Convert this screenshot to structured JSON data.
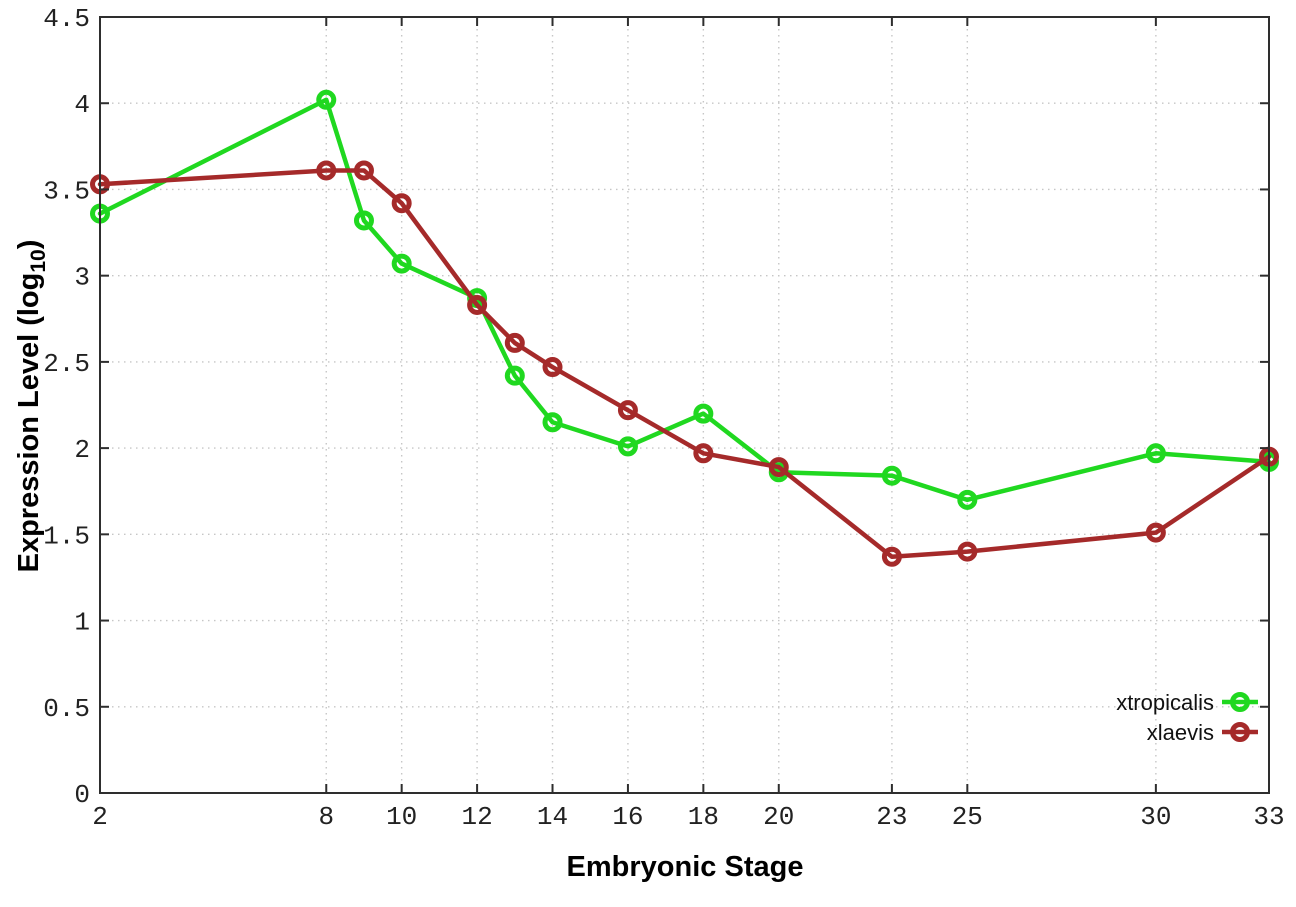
{
  "page": {
    "background": "#ffffff",
    "border_color": "#2e2e2e",
    "grid_color": "#c6c6c6",
    "tick_label_color": "#222222"
  },
  "chart_data": {
    "type": "line",
    "title": "",
    "xlabel": "Embryonic Stage",
    "ylabel": "Expression Level (log10)",
    "ylabel_parts": {
      "main": "Expression Level (log",
      "sub": "10",
      "end": ")"
    },
    "x": [
      2,
      8,
      9,
      10,
      12,
      13,
      14,
      16,
      18,
      20,
      23,
      25,
      30,
      33
    ],
    "xlim": [
      2,
      33
    ],
    "ylim": [
      0,
      4.5
    ],
    "xticks": [
      2,
      8,
      10,
      12,
      14,
      16,
      18,
      20,
      23,
      25,
      30,
      33
    ],
    "xtick_labels": [
      "2",
      "8",
      "10",
      "12",
      "14",
      "16",
      "18",
      "20",
      "23",
      "25",
      "30",
      "33"
    ],
    "yticks": [
      0,
      0.5,
      1,
      1.5,
      2,
      2.5,
      3,
      3.5,
      4,
      4.5
    ],
    "ytick_labels": [
      "0",
      "0.5",
      "1",
      "1.5",
      "2",
      "2.5",
      "3",
      "3.5",
      "4",
      "4.5"
    ],
    "grid": true,
    "legend_position": "bottom-right",
    "series": [
      {
        "name": "xtropicalis",
        "color": "#20d820",
        "marker": "open-circle",
        "values": [
          3.36,
          4.02,
          3.32,
          3.07,
          2.87,
          2.42,
          2.15,
          2.01,
          2.2,
          1.86,
          1.84,
          1.7,
          1.97,
          1.92
        ]
      },
      {
        "name": "xlaevis",
        "color": "#a52a2a",
        "marker": "open-circle",
        "values": [
          3.53,
          3.61,
          3.61,
          3.42,
          2.83,
          2.61,
          2.47,
          2.22,
          1.97,
          1.89,
          1.37,
          1.4,
          1.51,
          1.95
        ]
      }
    ]
  }
}
